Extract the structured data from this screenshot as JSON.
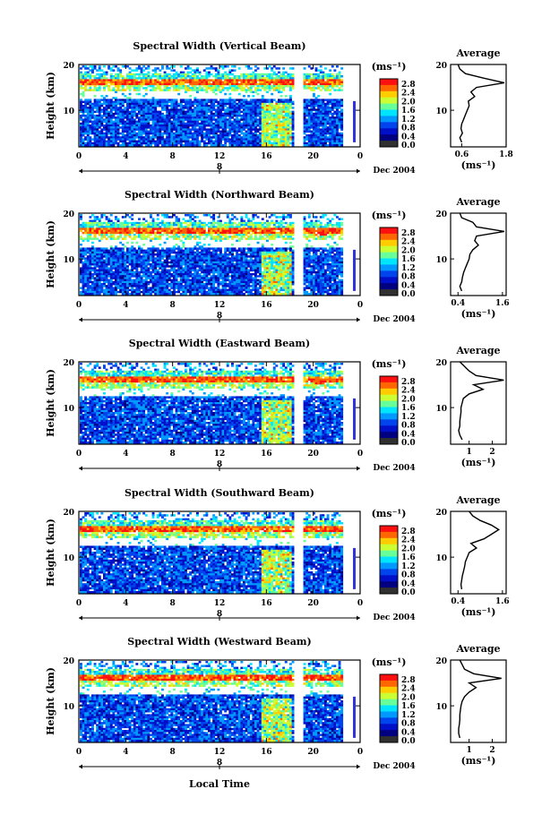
{
  "page": {
    "x_axis_label": "Local Time",
    "date_label": "Dec 2004",
    "day_marker": "8"
  },
  "colorbar": {
    "unit": "(ms⁻¹)",
    "ticks": [
      "2.8",
      "2.4",
      "2.0",
      "1.6",
      "1.2",
      "0.8",
      "0.4",
      "0.0"
    ],
    "colors": [
      "#ff1010",
      "#ff6600",
      "#ffcc00",
      "#ccff33",
      "#66ff99",
      "#00e5ff",
      "#0099ff",
      "#0044ee",
      "#0010c8",
      "#000080",
      "#303030"
    ]
  },
  "chart_data": [
    {
      "type": "heatmap",
      "title": "Spectral Width (Vertical Beam)",
      "xlabel": "Local Time",
      "ylabel": "Height (km)",
      "xticks": [
        "0",
        "4",
        "8",
        "12",
        "16",
        "20",
        "0"
      ],
      "xlim": [
        0,
        24
      ],
      "yticks": [
        "20",
        "10"
      ],
      "ylim": [
        2,
        20
      ],
      "profile": {
        "title": "Average",
        "xlabel": "(ms⁻¹)",
        "xticks": [
          "0.6",
          "1.8"
        ],
        "xlim": [
          0.3,
          1.8
        ],
        "yticks": [
          "20",
          "10"
        ],
        "heights": [
          3,
          4,
          5,
          6,
          7,
          8,
          9,
          10,
          11,
          12,
          13,
          14,
          15,
          16,
          17,
          18,
          19,
          20
        ],
        "values": [
          0.6,
          0.55,
          0.62,
          0.58,
          0.6,
          0.65,
          0.7,
          0.75,
          0.8,
          0.78,
          0.95,
          0.85,
          1.0,
          1.75,
          1.2,
          0.7,
          0.55,
          0.5
        ]
      }
    },
    {
      "type": "heatmap",
      "title": "Spectral Width (Northward Beam)",
      "xlabel": "Local Time",
      "ylabel": "Height (km)",
      "xticks": [
        "0",
        "4",
        "8",
        "12",
        "16",
        "20",
        "0"
      ],
      "xlim": [
        0,
        24
      ],
      "yticks": [
        "20",
        "10"
      ],
      "ylim": [
        2,
        20
      ],
      "profile": {
        "title": "Average",
        "xlabel": "(ms⁻¹)",
        "xticks": [
          "0.4",
          "1.6"
        ],
        "xlim": [
          0.2,
          1.7
        ],
        "yticks": [
          "20",
          "10"
        ],
        "heights": [
          3,
          4,
          5,
          6,
          7,
          8,
          9,
          10,
          11,
          12,
          13,
          14,
          15,
          16,
          17,
          18,
          19,
          20
        ],
        "values": [
          0.5,
          0.45,
          0.5,
          0.52,
          0.55,
          0.6,
          0.65,
          0.7,
          0.72,
          0.8,
          0.95,
          0.85,
          0.9,
          1.65,
          0.9,
          0.8,
          0.5,
          0.45
        ]
      }
    },
    {
      "type": "heatmap",
      "title": "Spectral Width (Eastward Beam)",
      "xlabel": "Local Time",
      "ylabel": "Height (km)",
      "xticks": [
        "0",
        "4",
        "8",
        "12",
        "16",
        "20",
        "0"
      ],
      "xlim": [
        0,
        24
      ],
      "yticks": [
        "20",
        "10"
      ],
      "ylim": [
        2,
        20
      ],
      "profile": {
        "title": "Average",
        "xlabel": "(ms⁻¹)",
        "xticks": [
          "1",
          "2"
        ],
        "xlim": [
          0.2,
          2.6
        ],
        "yticks": [
          "20",
          "10"
        ],
        "heights": [
          3,
          4,
          5,
          6,
          7,
          8,
          9,
          10,
          11,
          12,
          13,
          14,
          15,
          16,
          17,
          18,
          19,
          20
        ],
        "values": [
          0.7,
          0.6,
          0.55,
          0.6,
          0.6,
          0.62,
          0.65,
          0.65,
          0.7,
          0.75,
          1.0,
          1.6,
          1.2,
          2.5,
          1.3,
          1.0,
          0.8,
          0.6
        ]
      }
    },
    {
      "type": "heatmap",
      "title": "Spectral Width (Southward Beam)",
      "xlabel": "Local Time",
      "ylabel": "Height (km)",
      "xticks": [
        "0",
        "4",
        "8",
        "12",
        "16",
        "20",
        "0"
      ],
      "xlim": [
        0,
        24
      ],
      "yticks": [
        "20",
        "10"
      ],
      "ylim": [
        2,
        20
      ],
      "profile": {
        "title": "Average",
        "xlabel": "(ms⁻¹)",
        "xticks": [
          "0.4",
          "1.6"
        ],
        "xlim": [
          0.2,
          1.7
        ],
        "yticks": [
          "20",
          "10"
        ],
        "heights": [
          3,
          4,
          5,
          6,
          7,
          8,
          9,
          10,
          11,
          12,
          13,
          14,
          15,
          16,
          17,
          18,
          19,
          20
        ],
        "values": [
          0.5,
          0.48,
          0.5,
          0.52,
          0.55,
          0.58,
          0.6,
          0.65,
          0.7,
          0.9,
          0.75,
          1.1,
          1.3,
          1.5,
          1.3,
          1.0,
          0.8,
          0.7
        ]
      }
    },
    {
      "type": "heatmap",
      "title": "Spectral Width (Westward Beam)",
      "xlabel": "Local Time",
      "ylabel": "Height (km)",
      "xticks": [
        "0",
        "4",
        "8",
        "12",
        "16",
        "20",
        "0"
      ],
      "xlim": [
        0,
        24
      ],
      "yticks": [
        "20",
        "10"
      ],
      "ylim": [
        2,
        20
      ],
      "profile": {
        "title": "Average",
        "xlabel": "(ms⁻¹)",
        "xticks": [
          "1",
          "2"
        ],
        "xlim": [
          0.2,
          2.6
        ],
        "yticks": [
          "20",
          "10"
        ],
        "heights": [
          3,
          4,
          5,
          6,
          7,
          8,
          9,
          10,
          11,
          12,
          13,
          14,
          15,
          16,
          17,
          18,
          19,
          20
        ],
        "values": [
          0.6,
          0.55,
          0.55,
          0.58,
          0.6,
          0.6,
          0.62,
          0.65,
          0.7,
          0.8,
          1.0,
          1.3,
          1.0,
          2.4,
          1.2,
          0.8,
          0.7,
          0.6
        ]
      }
    }
  ]
}
